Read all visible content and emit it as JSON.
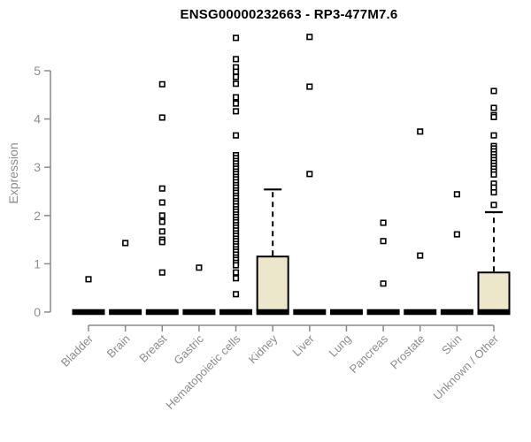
{
  "chart_data": {
    "type": "boxplot",
    "title": "ENSG00000232663 - RP3-477M7.6",
    "ylabel": "Expression",
    "xlabel": "",
    "ylim": [
      0,
      5.8
    ],
    "yticks": [
      0,
      1,
      2,
      3,
      4,
      5
    ],
    "grid": false,
    "legend": "none",
    "colors": {
      "box_fill": "#ece7cb",
      "box_border": "#000000",
      "median": "#000000",
      "whisker": "#000000",
      "outlier_stroke": "#000000",
      "outlier_fill": "#ffffff",
      "axis": "#8a8a8a",
      "tick_label": "#8c8c8c",
      "title": "#000000",
      "background": "#ffffff"
    },
    "categories": [
      "Bladder",
      "Brain",
      "Breast",
      "Gastric",
      "Hematopoietic cells",
      "Kidney",
      "Liver",
      "Lung",
      "Pancreas",
      "Prostate",
      "Skin",
      "Unknown / Other"
    ],
    "boxes": [
      {
        "category": "Bladder",
        "median": 0,
        "q1": 0,
        "q3": 0,
        "whisker_low": 0,
        "whisker_high": 0,
        "outliers": [
          0.68
        ]
      },
      {
        "category": "Brain",
        "median": 0,
        "q1": 0,
        "q3": 0,
        "whisker_low": 0,
        "whisker_high": 0,
        "outliers": [
          1.43
        ]
      },
      {
        "category": "Breast",
        "median": 0,
        "q1": 0,
        "q3": 0,
        "whisker_low": 0,
        "whisker_high": 0,
        "outliers": [
          4.72,
          4.03,
          2.56,
          2.27,
          2.0,
          1.87,
          1.67,
          1.5,
          1.45,
          0.82
        ]
      },
      {
        "category": "Gastric",
        "median": 0,
        "q1": 0,
        "q3": 0,
        "whisker_low": 0,
        "whisker_high": 0,
        "outliers": [
          0.92
        ]
      },
      {
        "category": "Hematopoietic cells",
        "median": 0,
        "q1": 0,
        "q3": 0,
        "whisker_low": 0,
        "whisker_high": 0,
        "outliers": [
          5.68,
          5.24,
          5.07,
          4.98,
          4.87,
          4.73,
          4.45,
          4.32,
          4.16,
          3.66,
          3.25,
          3.19,
          3.13,
          3.08,
          3.02,
          2.97,
          2.91,
          2.86,
          2.8,
          2.75,
          2.69,
          2.63,
          2.58,
          2.52,
          2.47,
          2.41,
          2.36,
          2.3,
          2.25,
          2.19,
          2.13,
          2.08,
          2.02,
          1.97,
          1.91,
          1.86,
          1.8,
          1.75,
          1.69,
          1.63,
          1.58,
          1.52,
          1.47,
          1.41,
          1.36,
          1.3,
          1.25,
          1.19,
          1.13,
          1.08,
          1.02,
          0.97,
          0.82,
          0.7,
          0.37
        ]
      },
      {
        "category": "Kidney",
        "median": 0,
        "q1": 0,
        "q3": 1.15,
        "whisker_low": 0,
        "whisker_high": 2.54,
        "outliers": []
      },
      {
        "category": "Liver",
        "median": 0,
        "q1": 0,
        "q3": 0,
        "whisker_low": 0,
        "whisker_high": 0,
        "outliers": [
          5.7,
          4.67,
          2.86
        ]
      },
      {
        "category": "Lung",
        "median": 0,
        "q1": 0,
        "q3": 0,
        "whisker_low": 0,
        "whisker_high": 0,
        "outliers": []
      },
      {
        "category": "Pancreas",
        "median": 0,
        "q1": 0,
        "q3": 0,
        "whisker_low": 0,
        "whisker_high": 0,
        "outliers": [
          1.85,
          1.47,
          0.59
        ]
      },
      {
        "category": "Prostate",
        "median": 0,
        "q1": 0,
        "q3": 0,
        "whisker_low": 0,
        "whisker_high": 0,
        "outliers": [
          3.74,
          1.17
        ]
      },
      {
        "category": "Skin",
        "median": 0,
        "q1": 0,
        "q3": 0,
        "whisker_low": 0,
        "whisker_high": 0,
        "outliers": [
          2.44,
          1.61
        ]
      },
      {
        "category": "Unknown / Other",
        "median": 0,
        "q1": 0,
        "q3": 0.82,
        "whisker_low": 0,
        "whisker_high": 2.07,
        "outliers": [
          4.58,
          4.23,
          4.08,
          4.04,
          3.66,
          3.44,
          3.39,
          3.33,
          3.27,
          3.21,
          3.15,
          3.09,
          3.03,
          2.97,
          2.91,
          2.85,
          2.66,
          2.58,
          2.48,
          2.22
        ]
      }
    ]
  }
}
